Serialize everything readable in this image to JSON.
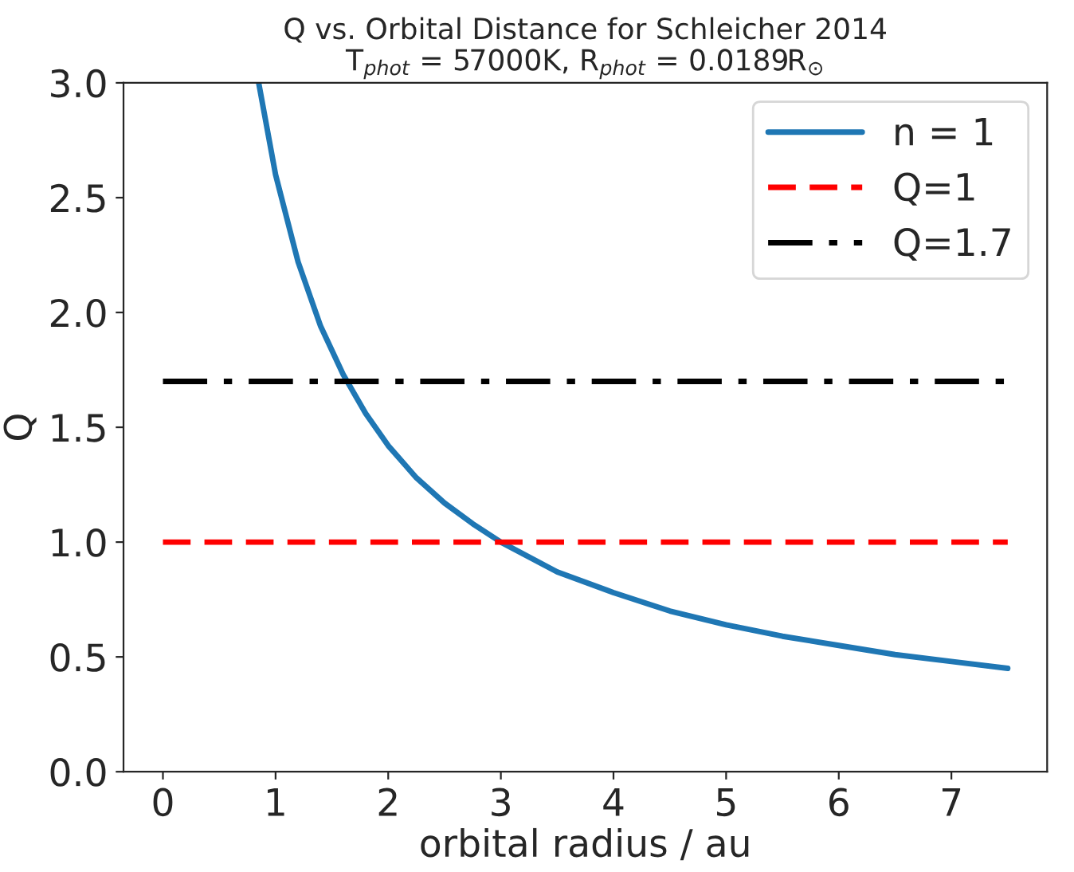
{
  "chart_data": {
    "type": "line",
    "title": "Q vs. Orbital Distance for Schleicher 2014",
    "subtitle": "T$_{phot}$ = 57000K, R$_{phot}$ = 0.0189R$_{⊙}$",
    "xlabel": "orbital radius / au",
    "ylabel": "Q",
    "series": [
      {
        "name": "n = 1",
        "color": "#1f77b4",
        "line_style": "solid",
        "x": [
          0.85,
          1,
          1.2,
          1.4,
          1.6,
          1.8,
          2,
          2.25,
          2.5,
          2.75,
          3,
          3.5,
          4,
          4.5,
          5,
          5.5,
          6,
          6.5,
          7,
          7.5
        ],
        "values": [
          3.0,
          2.6,
          2.22,
          1.94,
          1.73,
          1.56,
          1.42,
          1.28,
          1.17,
          1.08,
          1.0,
          0.87,
          0.78,
          0.7,
          0.64,
          0.59,
          0.55,
          0.51,
          0.48,
          0.45
        ]
      },
      {
        "name": "Q=1",
        "color": "#ff0000",
        "line_style": "dashed",
        "x": [
          0,
          7.5
        ],
        "values": [
          1,
          1
        ]
      },
      {
        "name": "Q=1.7",
        "color": "#000000",
        "line_style": "dashdot",
        "x": [
          0,
          7.5
        ],
        "values": [
          1.7,
          1.7
        ]
      }
    ],
    "xlim": [
      -0.35,
      7.85
    ],
    "xticks": [
      0,
      1,
      2,
      3,
      4,
      5,
      6,
      7
    ],
    "ylim": [
      0,
      3
    ],
    "yticks": [
      {
        "value": 0,
        "label": "0.0"
      },
      {
        "value": 0.5,
        "label": "0.5"
      },
      {
        "value": 1,
        "label": "1.0"
      },
      {
        "value": 1.5,
        "label": "1.5"
      },
      {
        "value": 2,
        "label": "2.0"
      },
      {
        "value": 2.5,
        "label": "2.5"
      },
      {
        "value": 3,
        "label": "3.0"
      }
    ],
    "grid": false,
    "legend": "top right",
    "marker": "none"
  }
}
